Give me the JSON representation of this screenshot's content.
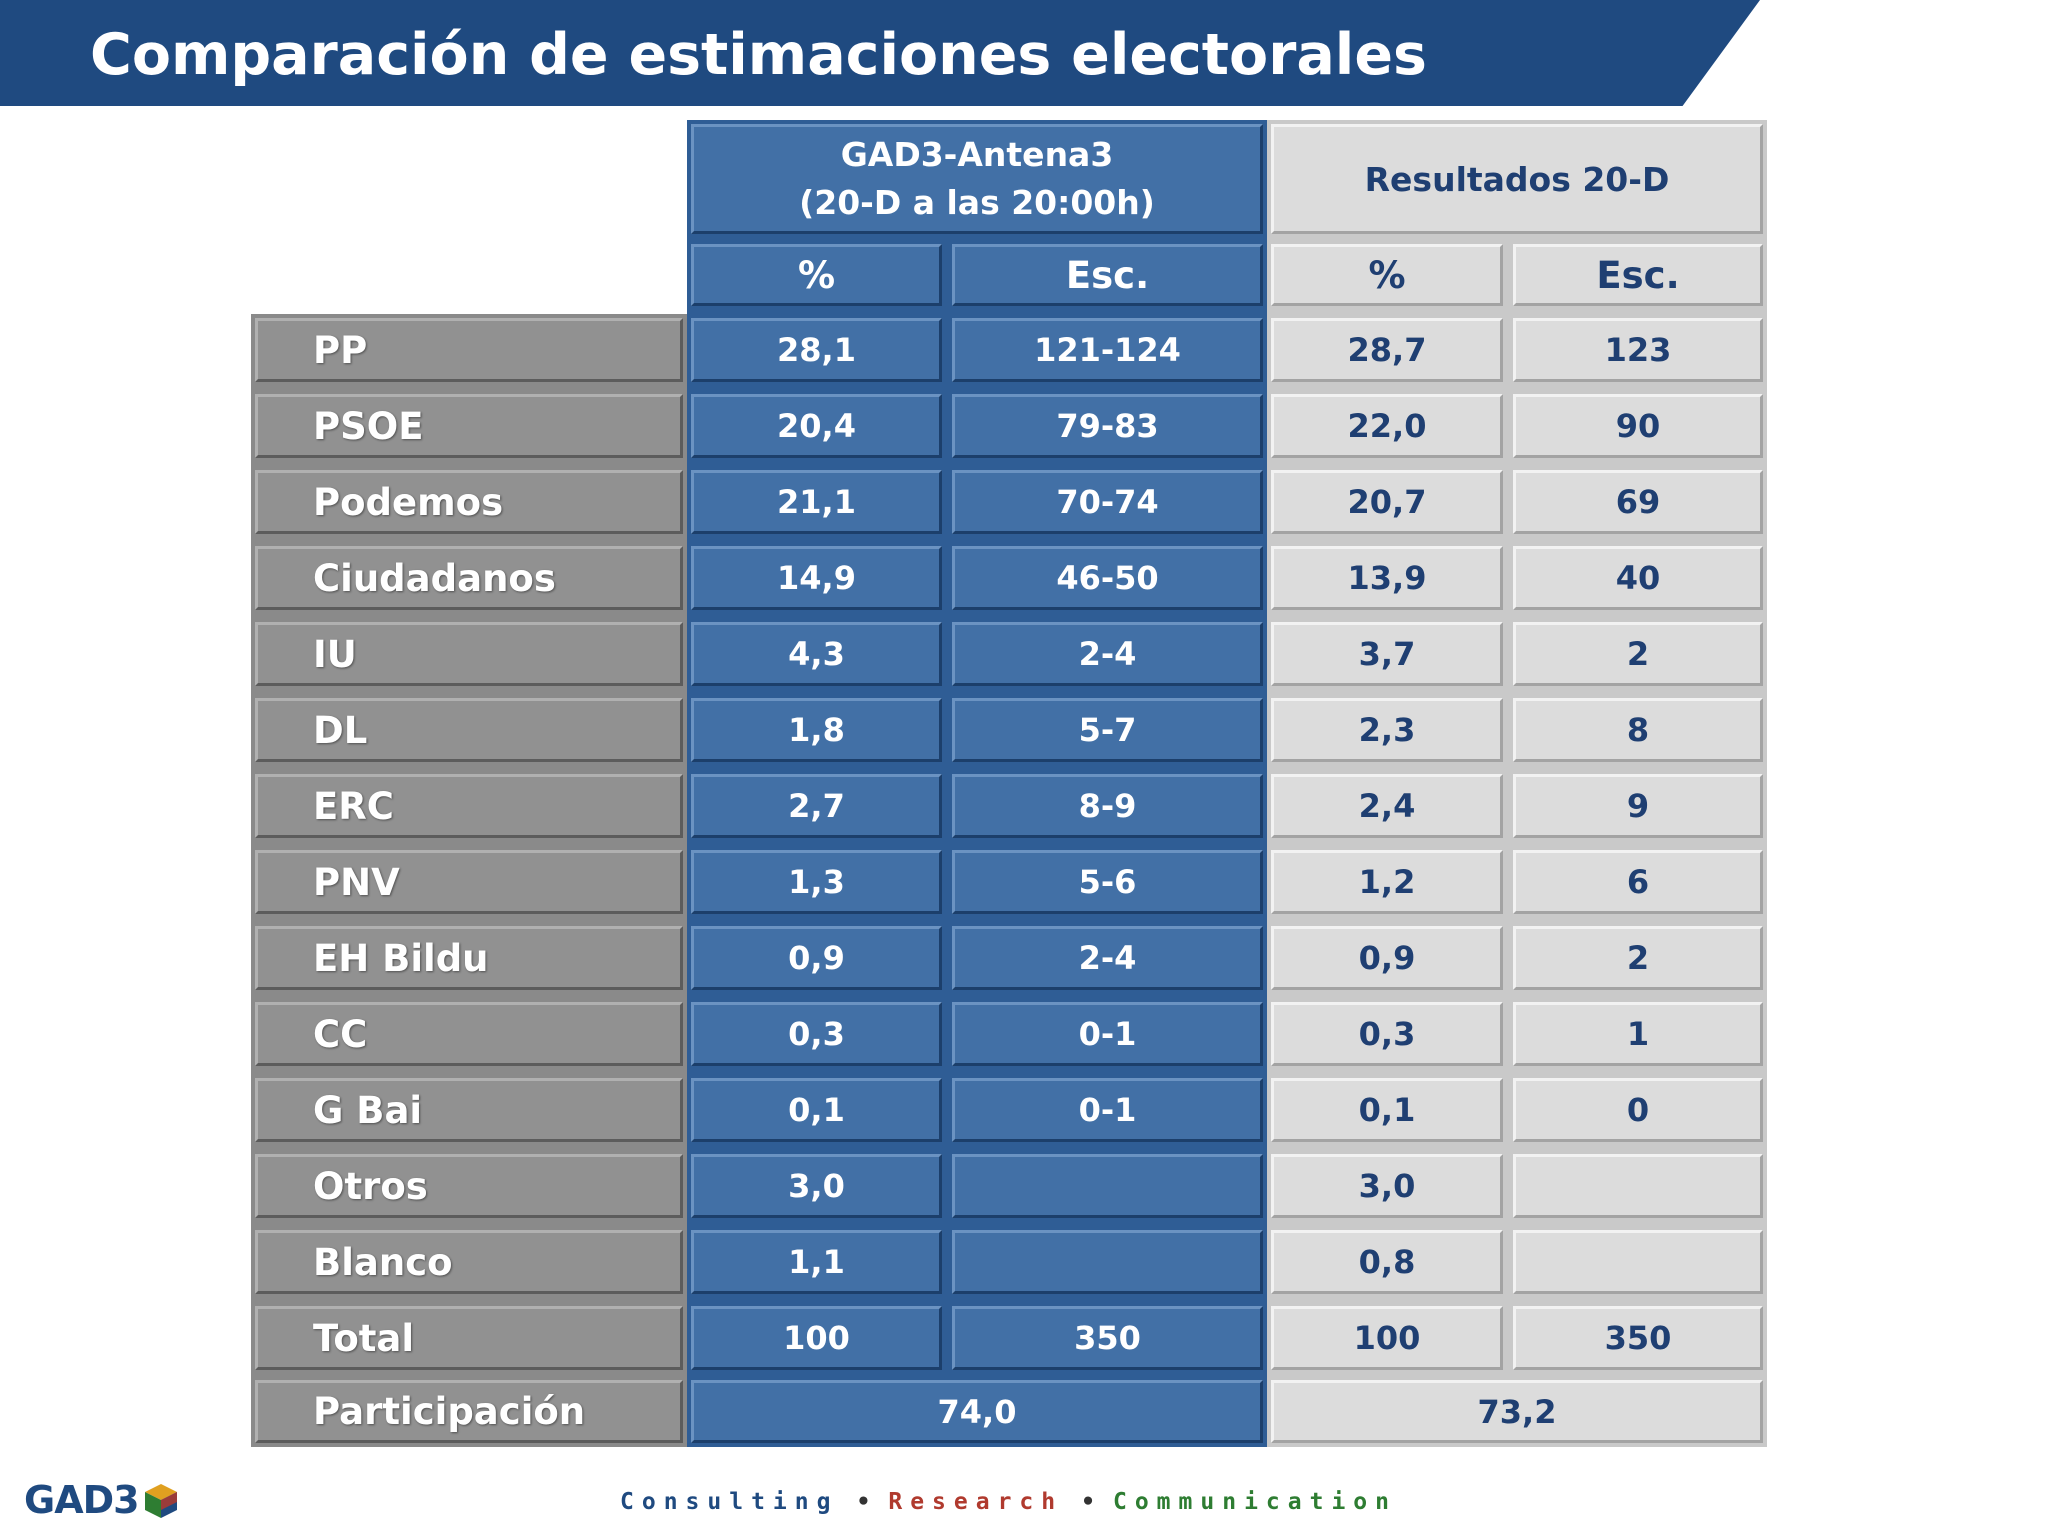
{
  "title": "Comparación de estimaciones electorales",
  "colors": {
    "title_bar": "#1f4a80",
    "gad3_column": "#4270a6",
    "results_column": "#dcdcdc",
    "party_column": "#919191",
    "tagline_consulting": "#1f4a80",
    "tagline_research": "#b03a2e",
    "tagline_communication": "#2e7d32"
  },
  "header": {
    "gad3_line1": "GAD3-Antena3",
    "gad3_line2": "(20-D a las 20:00h)",
    "results": "Resultados 20-D",
    "pct": "%",
    "seats": "Esc."
  },
  "rows": [
    {
      "party": "PP",
      "gad3_pct": "28,1",
      "gad3_seats": "121-124",
      "res_pct": "28,7",
      "res_seats": "123"
    },
    {
      "party": "PSOE",
      "gad3_pct": "20,4",
      "gad3_seats": "79-83",
      "res_pct": "22,0",
      "res_seats": "90"
    },
    {
      "party": "Podemos",
      "gad3_pct": "21,1",
      "gad3_seats": "70-74",
      "res_pct": "20,7",
      "res_seats": "69"
    },
    {
      "party": "Ciudadanos",
      "gad3_pct": "14,9",
      "gad3_seats": "46-50",
      "res_pct": "13,9",
      "res_seats": "40"
    },
    {
      "party": "IU",
      "gad3_pct": "4,3",
      "gad3_seats": "2-4",
      "res_pct": "3,7",
      "res_seats": "2"
    },
    {
      "party": "DL",
      "gad3_pct": "1,8",
      "gad3_seats": "5-7",
      "res_pct": "2,3",
      "res_seats": "8"
    },
    {
      "party": "ERC",
      "gad3_pct": "2,7",
      "gad3_seats": "8-9",
      "res_pct": "2,4",
      "res_seats": "9"
    },
    {
      "party": "PNV",
      "gad3_pct": "1,3",
      "gad3_seats": "5-6",
      "res_pct": "1,2",
      "res_seats": "6"
    },
    {
      "party": "EH Bildu",
      "gad3_pct": "0,9",
      "gad3_seats": "2-4",
      "res_pct": "0,9",
      "res_seats": "2"
    },
    {
      "party": "CC",
      "gad3_pct": "0,3",
      "gad3_seats": "0-1",
      "res_pct": "0,3",
      "res_seats": "1"
    },
    {
      "party": "G Bai",
      "gad3_pct": "0,1",
      "gad3_seats": "0-1",
      "res_pct": "0,1",
      "res_seats": "0"
    },
    {
      "party": "Otros",
      "gad3_pct": "3,0",
      "gad3_seats": "",
      "res_pct": "3,0",
      "res_seats": ""
    },
    {
      "party": "Blanco",
      "gad3_pct": "1,1",
      "gad3_seats": "",
      "res_pct": "0,8",
      "res_seats": ""
    },
    {
      "party": "Total",
      "gad3_pct": "100",
      "gad3_seats": "350",
      "res_pct": "100",
      "res_seats": "350"
    }
  ],
  "participation": {
    "label": "Participación",
    "gad3": "74,0",
    "results": "73,2"
  },
  "footer": {
    "logo": "GAD3",
    "logo_icon": "cube-icon",
    "consulting": "Consulting",
    "research": "Research",
    "communication": "Communication",
    "separator": "•"
  }
}
